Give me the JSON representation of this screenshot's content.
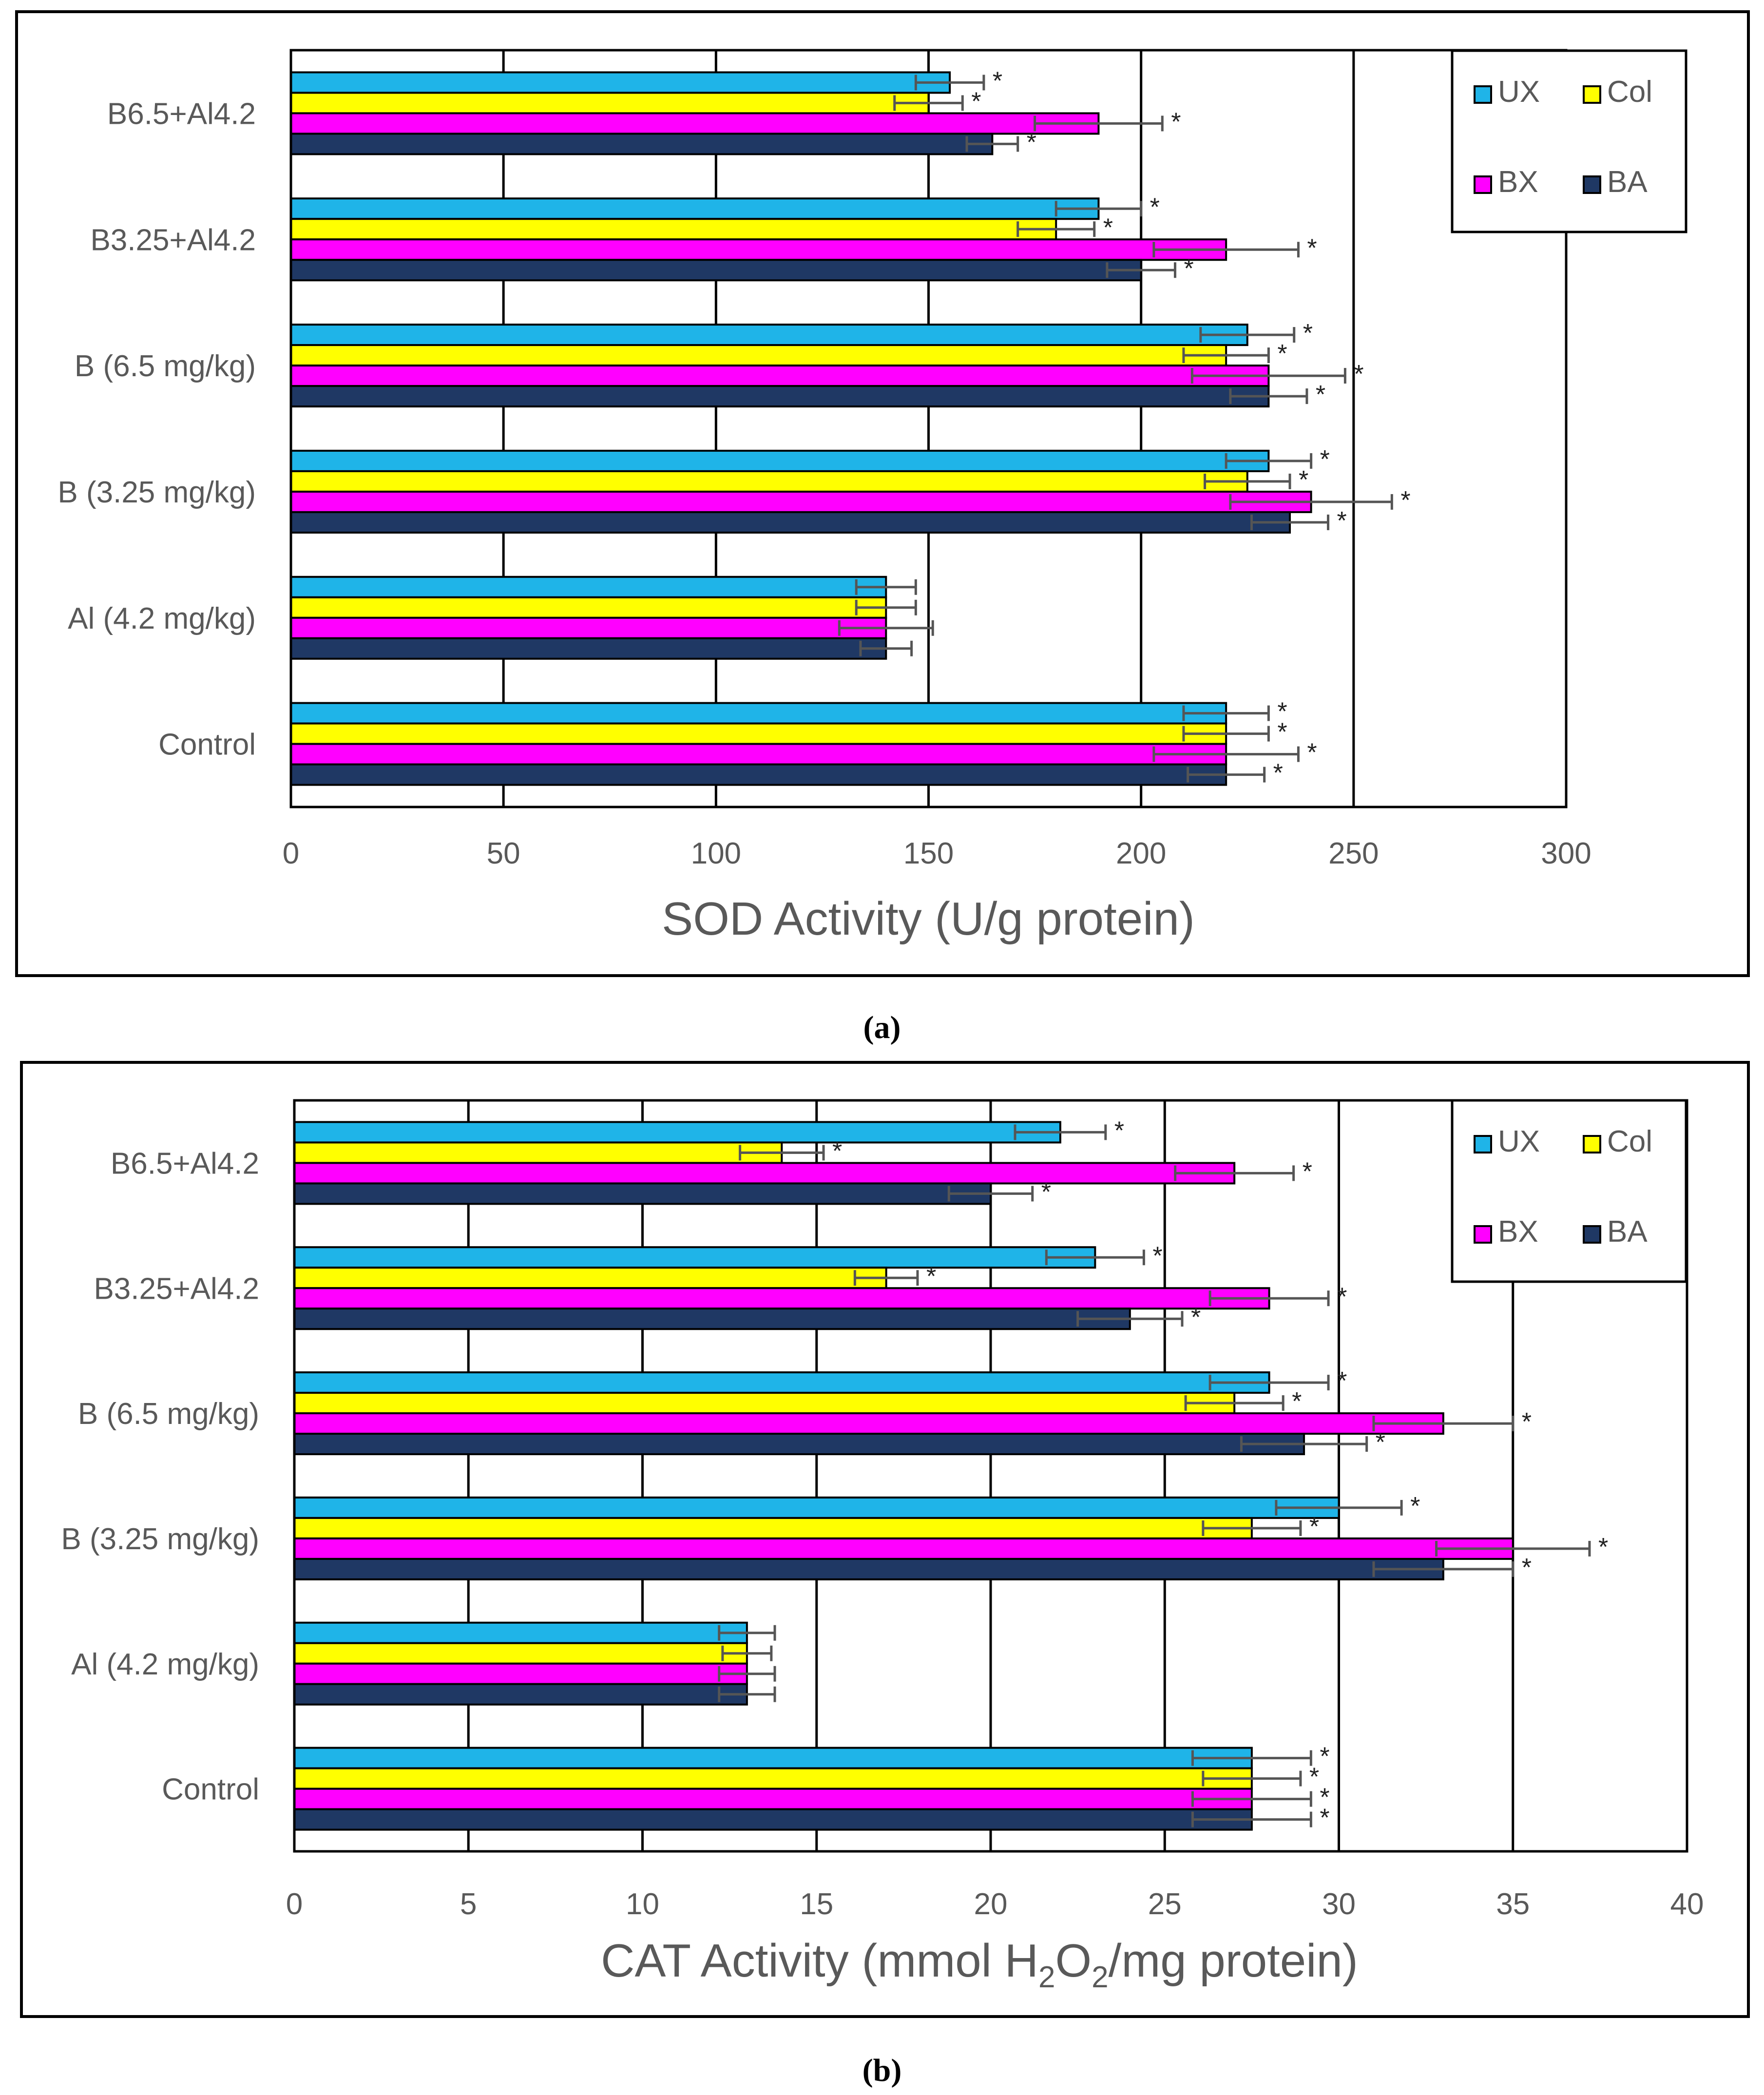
{
  "figure": {
    "captions": [
      "(a)",
      "(b)"
    ]
  },
  "legend": {
    "entries": [
      {
        "name": "UX",
        "color": "#1FB4E8"
      },
      {
        "name": "Col",
        "color": "#FFFF00"
      },
      {
        "name": "BX",
        "color": "#FF00FF"
      },
      {
        "name": "BA",
        "color": "#1F3864"
      }
    ]
  },
  "chart_data": [
    {
      "type": "bar",
      "orientation": "horizontal",
      "panel": "a",
      "xlabel": "SOD Activity  (U/g protein)",
      "xlim": [
        0,
        300
      ],
      "xticks": [
        0,
        50,
        100,
        150,
        200,
        250,
        300
      ],
      "categories": [
        "B6.5+Al4.2",
        "B3.25+Al4.2",
        "B (6.5 mg/kg)",
        "B (3.25 mg/kg)",
        "Al (4.2 mg/kg)",
        "Control"
      ],
      "series": [
        {
          "name": "UX",
          "values": [
            155,
            190,
            225,
            230,
            140,
            220
          ],
          "errors": [
            8,
            10,
            11,
            10,
            7,
            10
          ],
          "significant": [
            true,
            true,
            true,
            true,
            false,
            true
          ]
        },
        {
          "name": "Col",
          "values": [
            150,
            180,
            220,
            225,
            140,
            220
          ],
          "errors": [
            8,
            9,
            10,
            10,
            7,
            10
          ],
          "significant": [
            true,
            true,
            true,
            true,
            false,
            true
          ]
        },
        {
          "name": "BX",
          "values": [
            190,
            220,
            230,
            240,
            140,
            220
          ],
          "errors": [
            15,
            17,
            18,
            19,
            11,
            17
          ],
          "significant": [
            true,
            true,
            true,
            true,
            false,
            true
          ]
        },
        {
          "name": "BA",
          "values": [
            165,
            200,
            230,
            235,
            140,
            220
          ],
          "errors": [
            6,
            8,
            9,
            9,
            6,
            9
          ],
          "significant": [
            true,
            true,
            true,
            true,
            false,
            true
          ]
        }
      ],
      "significance_marker": "*",
      "legend_position": "top-right"
    },
    {
      "type": "bar",
      "orientation": "horizontal",
      "panel": "b",
      "xlabel_parts": [
        "CAT Activity  (mmol H",
        "2",
        "O",
        "2",
        "/mg protein)"
      ],
      "xlim": [
        0,
        40
      ],
      "xticks": [
        0,
        5,
        10,
        15,
        20,
        25,
        30,
        35,
        40
      ],
      "categories": [
        "B6.5+Al4.2",
        "B3.25+Al4.2",
        "B (6.5 mg/kg)",
        "B (3.25 mg/kg)",
        "Al (4.2 mg/kg)",
        "Control"
      ],
      "series": [
        {
          "name": "UX",
          "values": [
            22,
            23,
            28,
            30,
            13,
            27.5
          ],
          "errors": [
            1.3,
            1.4,
            1.7,
            1.8,
            0.8,
            1.7
          ],
          "significant": [
            true,
            true,
            true,
            true,
            false,
            true
          ]
        },
        {
          "name": "Col",
          "values": [
            14,
            17,
            27,
            27.5,
            13,
            27.5
          ],
          "errors": [
            1.2,
            0.9,
            1.4,
            1.4,
            0.7,
            1.4
          ],
          "significant": [
            true,
            true,
            true,
            true,
            false,
            true
          ]
        },
        {
          "name": "BX",
          "values": [
            27,
            28,
            33,
            35,
            13,
            27.5
          ],
          "errors": [
            1.7,
            1.7,
            2.0,
            2.2,
            0.8,
            1.7
          ],
          "significant": [
            true,
            true,
            true,
            true,
            false,
            true
          ]
        },
        {
          "name": "BA",
          "values": [
            20,
            24,
            29,
            33,
            13,
            27.5
          ],
          "errors": [
            1.2,
            1.5,
            1.8,
            2.0,
            0.8,
            1.7
          ],
          "significant": [
            true,
            true,
            true,
            true,
            false,
            true
          ]
        }
      ],
      "significance_marker": "*",
      "legend_position": "top-right"
    }
  ]
}
